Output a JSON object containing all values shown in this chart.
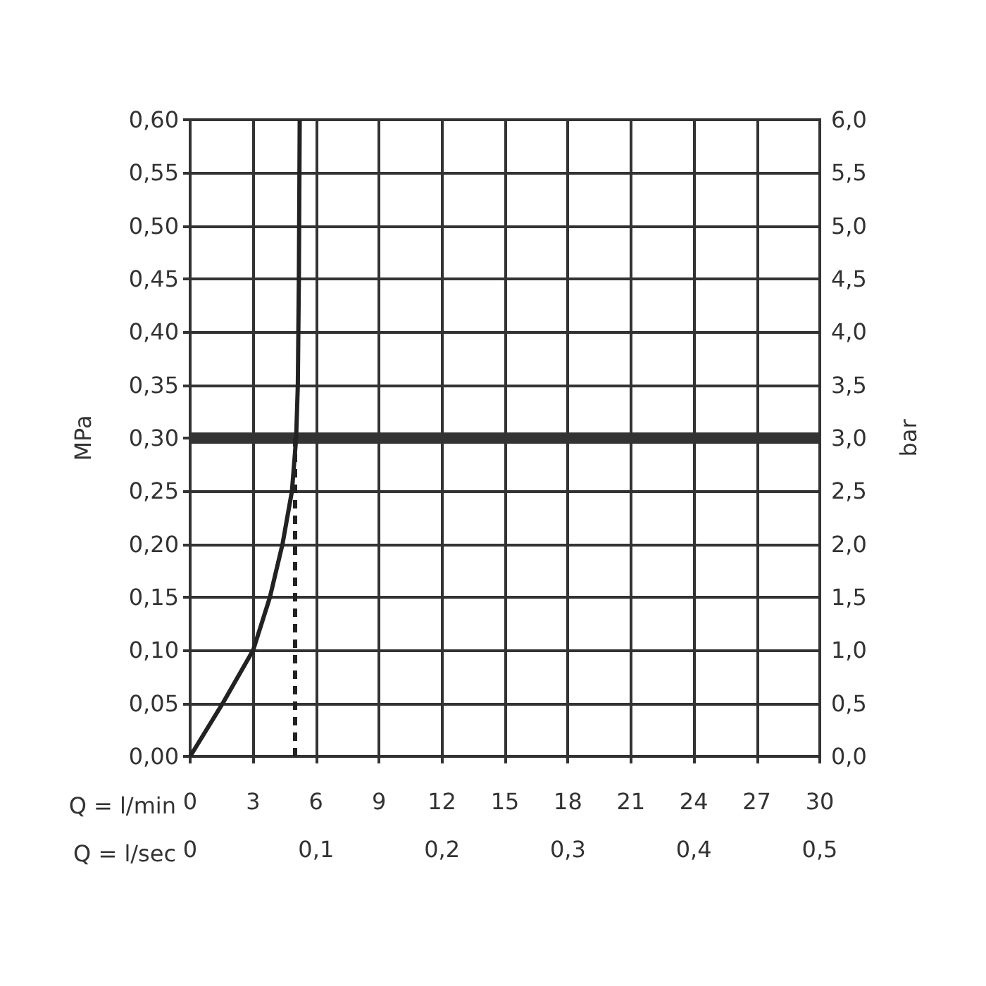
{
  "chart_data": {
    "type": "line",
    "xlabel": "Q = l/min",
    "x2label": "Q = l/sec",
    "ylabel": "MPa",
    "y2label": "bar",
    "xlim": [
      0,
      30
    ],
    "xticks": [
      0,
      3,
      6,
      9,
      12,
      15,
      18,
      21,
      24,
      27,
      30
    ],
    "x2lim": [
      0,
      0.5
    ],
    "x2ticks": [
      {
        "value": 0,
        "label": "0"
      },
      {
        "value": 0.1,
        "label": "0,1"
      },
      {
        "value": 0.2,
        "label": "0,2"
      },
      {
        "value": 0.3,
        "label": "0,3"
      },
      {
        "value": 0.4,
        "label": "0,4"
      },
      {
        "value": 0.5,
        "label": "0,5"
      }
    ],
    "ylim": [
      0,
      0.6
    ],
    "yticks": [
      {
        "value": 0,
        "label": "0,00"
      },
      {
        "value": 0.05,
        "label": "0,05"
      },
      {
        "value": 0.1,
        "label": "0,10"
      },
      {
        "value": 0.15,
        "label": "0,15"
      },
      {
        "value": 0.2,
        "label": "0,20"
      },
      {
        "value": 0.25,
        "label": "0,25"
      },
      {
        "value": 0.3,
        "label": "0,30"
      },
      {
        "value": 0.35,
        "label": "0,35"
      },
      {
        "value": 0.4,
        "label": "0,40"
      },
      {
        "value": 0.45,
        "label": "0,45"
      },
      {
        "value": 0.5,
        "label": "0,50"
      },
      {
        "value": 0.55,
        "label": "0,55"
      },
      {
        "value": 0.6,
        "label": "0,60"
      }
    ],
    "y2lim": [
      0,
      6
    ],
    "y2ticks": [
      {
        "value": 0,
        "label": "0,0"
      },
      {
        "value": 0.5,
        "label": "0,5"
      },
      {
        "value": 1,
        "label": "1,0"
      },
      {
        "value": 1.5,
        "label": "1,5"
      },
      {
        "value": 2,
        "label": "2,0"
      },
      {
        "value": 2.5,
        "label": "2,5"
      },
      {
        "value": 3,
        "label": "3,0"
      },
      {
        "value": 3.5,
        "label": "3,5"
      },
      {
        "value": 4,
        "label": "4,0"
      },
      {
        "value": 4.5,
        "label": "4,5"
      },
      {
        "value": 5,
        "label": "5,0"
      },
      {
        "value": 5.5,
        "label": "5,5"
      },
      {
        "value": 6,
        "label": "6,0"
      }
    ],
    "series": [
      {
        "color": "#222222",
        "x": [
          0,
          1.55,
          3.0,
          3.8,
          4.4,
          4.85,
          5.05,
          5.13,
          5.18,
          5.22
        ],
        "values": [
          0,
          0.05,
          0.1,
          0.15,
          0.2,
          0.25,
          0.3,
          0.35,
          0.45,
          0.6
        ]
      },
      {
        "color": "#222222",
        "line_style": "dashed",
        "x": [
          5.0,
          5.0
        ],
        "values": [
          0,
          0.3
        ]
      }
    ],
    "ref_lines": [
      {
        "axis": "y",
        "value": 0.3,
        "color": "#333333"
      }
    ],
    "grid": true,
    "marker": "none",
    "line_style": "solid"
  }
}
